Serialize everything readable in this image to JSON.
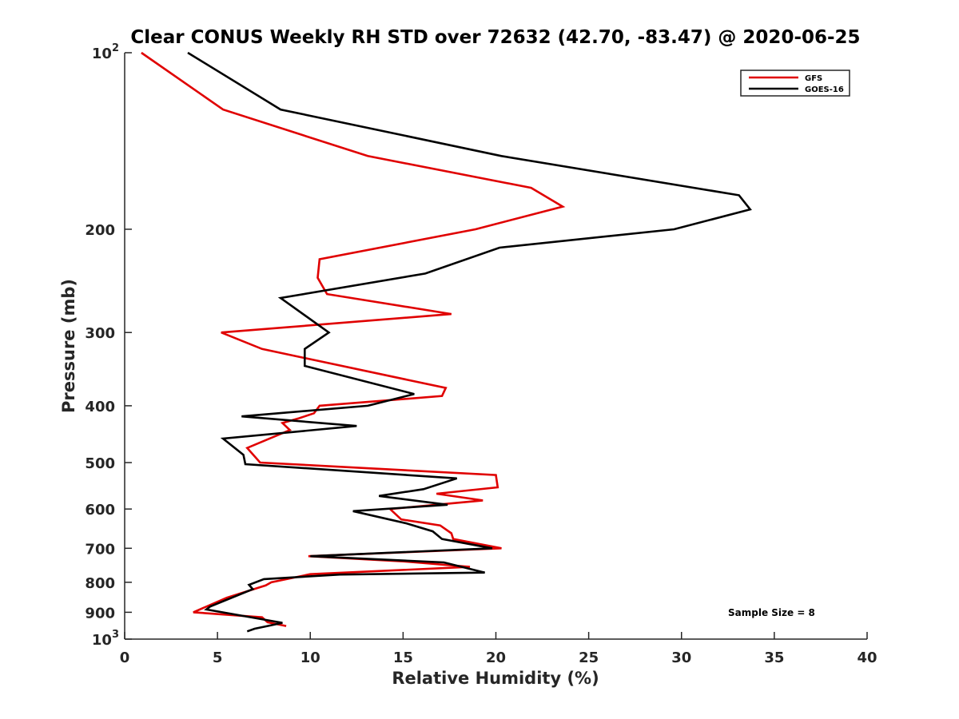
{
  "chart_data": {
    "type": "line",
    "title": "Clear CONUS Weekly RH STD over 72632 (42.70, -83.47) @ 2020-06-25",
    "xlabel": "Relative Humidity (%)",
    "ylabel": "Pressure (mb)",
    "xlim": [
      0,
      40
    ],
    "ylim": [
      100,
      1000
    ],
    "y_scale": "log",
    "y_reversed": true,
    "grid": false,
    "x_ticks": [
      "0",
      "5",
      "10",
      "15",
      "20",
      "25",
      "30",
      "35",
      "40"
    ],
    "x_tick_values": [
      0,
      5,
      10,
      15,
      20,
      25,
      30,
      35,
      40
    ],
    "y_ticks": [
      {
        "value": 100,
        "base": "10",
        "exp": "2"
      },
      {
        "value": 200,
        "label": "200"
      },
      {
        "value": 300,
        "label": "300"
      },
      {
        "value": 400,
        "label": "400"
      },
      {
        "value": 500,
        "label": "500"
      },
      {
        "value": 600,
        "label": "600"
      },
      {
        "value": 700,
        "label": "700"
      },
      {
        "value": 800,
        "label": "800"
      },
      {
        "value": 900,
        "label": "900"
      },
      {
        "value": 1000,
        "base": "10",
        "exp": "3"
      }
    ],
    "legend": {
      "position": "top-right"
    },
    "annotation": "Sample Size = 8",
    "series": [
      {
        "name": "GFS",
        "color": "#e00000",
        "points": [
          [
            0.9,
            100
          ],
          [
            5.3,
            125
          ],
          [
            13.1,
            150
          ],
          [
            21.9,
            170
          ],
          [
            23.6,
            183
          ],
          [
            18.9,
            200
          ],
          [
            10.5,
            225
          ],
          [
            10.4,
            242
          ],
          [
            10.9,
            258
          ],
          [
            17.6,
            279
          ],
          [
            5.2,
            300
          ],
          [
            7.4,
            320
          ],
          [
            17.3,
            373
          ],
          [
            17.1,
            385
          ],
          [
            10.5,
            400
          ],
          [
            10.2,
            412
          ],
          [
            9.4,
            420
          ],
          [
            8.5,
            428
          ],
          [
            8.9,
            440
          ],
          [
            6.6,
            472
          ],
          [
            7.3,
            500
          ],
          [
            20.0,
            525
          ],
          [
            20.1,
            551
          ],
          [
            16.8,
            565
          ],
          [
            19.3,
            580
          ],
          [
            14.3,
            600
          ],
          [
            14.9,
            625
          ],
          [
            17.0,
            640
          ],
          [
            17.6,
            660
          ],
          [
            17.7,
            675
          ],
          [
            20.3,
            700
          ],
          [
            9.9,
            722
          ],
          [
            15.0,
            737
          ],
          [
            18.6,
            753
          ],
          [
            10.0,
            775
          ],
          [
            7.9,
            800
          ],
          [
            7.6,
            810
          ],
          [
            6.9,
            823
          ],
          [
            5.5,
            850
          ],
          [
            3.7,
            900
          ],
          [
            7.4,
            918
          ],
          [
            7.7,
            936
          ],
          [
            8.7,
            950
          ]
        ]
      },
      {
        "name": "GOES-16",
        "color": "#000000",
        "points": [
          [
            3.4,
            100
          ],
          [
            8.4,
            125
          ],
          [
            20.3,
            150
          ],
          [
            33.1,
            175
          ],
          [
            33.7,
            185
          ],
          [
            29.6,
            200
          ],
          [
            20.2,
            215
          ],
          [
            16.2,
            238
          ],
          [
            8.4,
            262
          ],
          [
            11.0,
            300
          ],
          [
            9.7,
            320
          ],
          [
            9.7,
            342
          ],
          [
            15.6,
            382
          ],
          [
            13.1,
            400
          ],
          [
            6.3,
            417
          ],
          [
            12.5,
            433
          ],
          [
            5.3,
            455
          ],
          [
            6.4,
            485
          ],
          [
            6.5,
            503
          ],
          [
            17.9,
            532
          ],
          [
            16.1,
            555
          ],
          [
            13.7,
            570
          ],
          [
            17.4,
            590
          ],
          [
            12.3,
            605
          ],
          [
            15.2,
            635
          ],
          [
            16.6,
            655
          ],
          [
            17.1,
            675
          ],
          [
            19.8,
            700
          ],
          [
            10.0,
            722
          ],
          [
            17.2,
            740
          ],
          [
            19.4,
            770
          ],
          [
            11.6,
            776
          ],
          [
            7.5,
            790
          ],
          [
            6.7,
            808
          ],
          [
            6.9,
            822
          ],
          [
            4.6,
            880
          ],
          [
            4.4,
            890
          ],
          [
            8.5,
            938
          ],
          [
            7.7,
            950
          ],
          [
            7.0,
            960
          ],
          [
            6.6,
            970
          ]
        ]
      }
    ]
  }
}
